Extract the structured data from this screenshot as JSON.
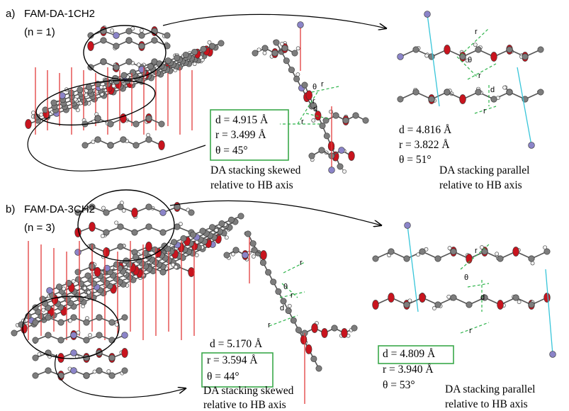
{
  "panels": [
    {
      "label": "a)",
      "name": "FAM-DA-1CH2",
      "n": "(n = 1)",
      "views": [
        {
          "measurements": [
            "d = 4.915 Å",
            "r = 3.499 Å",
            "θ = 45°"
          ],
          "caption": [
            "DA stacking skewed",
            "relative to HB axis"
          ],
          "annotations": [
            "r",
            "θ",
            "r",
            "d",
            "r"
          ]
        },
        {
          "measurements": [
            "d = 4.816 Å",
            "r = 3.822 Å",
            "θ = 51°"
          ],
          "caption": [
            "DA stacking parallel",
            "relative to HB axis"
          ],
          "annotations": [
            "r",
            "θ",
            "r",
            "d",
            "r"
          ]
        }
      ]
    },
    {
      "label": "b)",
      "name": "FAM-DA-3CH2",
      "n": "(n = 3)",
      "views": [
        {
          "measurements": [
            "d = 5.170 Å",
            "r = 3.594 Å",
            "θ = 44°"
          ],
          "caption": [
            "DA stacking skewed",
            "relative to HB axis"
          ],
          "annotations": [
            "r",
            "θ",
            "r",
            "d",
            "r"
          ]
        },
        {
          "measurements": [
            "d = 4.809 Å",
            "r = 3.940 Å",
            "θ = 53°"
          ],
          "caption": [
            "DA stacking parallel",
            "relative to HB axis"
          ],
          "annotations": [
            "r",
            "θ",
            "d",
            "r"
          ]
        }
      ]
    }
  ]
}
